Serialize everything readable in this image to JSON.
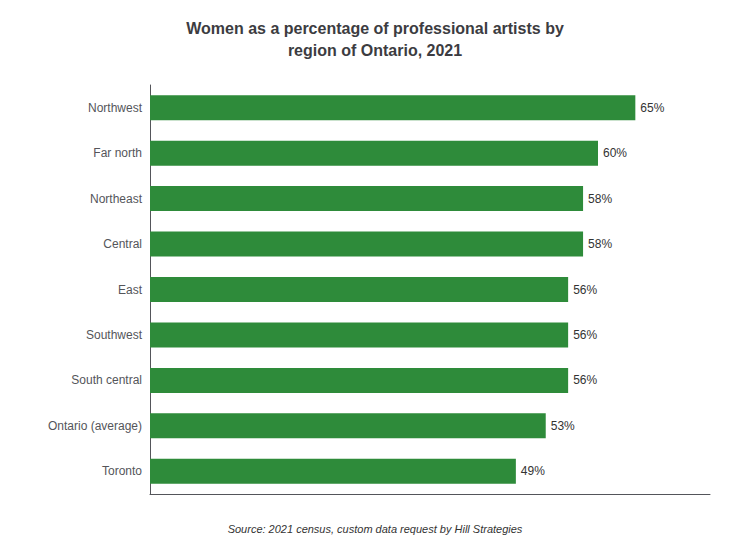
{
  "chart_data": {
    "type": "bar",
    "orientation": "horizontal",
    "title": "Women as a percentage of professional artists by\nregion of Ontario, 2021",
    "categories": [
      "Toronto",
      "Ontario (average)",
      "South central",
      "Southwest",
      "East",
      "Central",
      "Northeast",
      "Far north",
      "Northwest"
    ],
    "values": [
      49,
      53,
      56,
      56,
      56,
      58,
      58,
      60,
      65
    ],
    "value_labels": [
      "49%",
      "53%",
      "56%",
      "56%",
      "56%",
      "58%",
      "58%",
      "60%",
      "65%"
    ],
    "data_labels": true,
    "color": "#2e8b3a",
    "xlim": [
      0,
      75
    ],
    "tick_labels": "y",
    "grid": false,
    "annotations": [
      "Source: 2021 census, custom data request by Hill Strategies"
    ]
  }
}
